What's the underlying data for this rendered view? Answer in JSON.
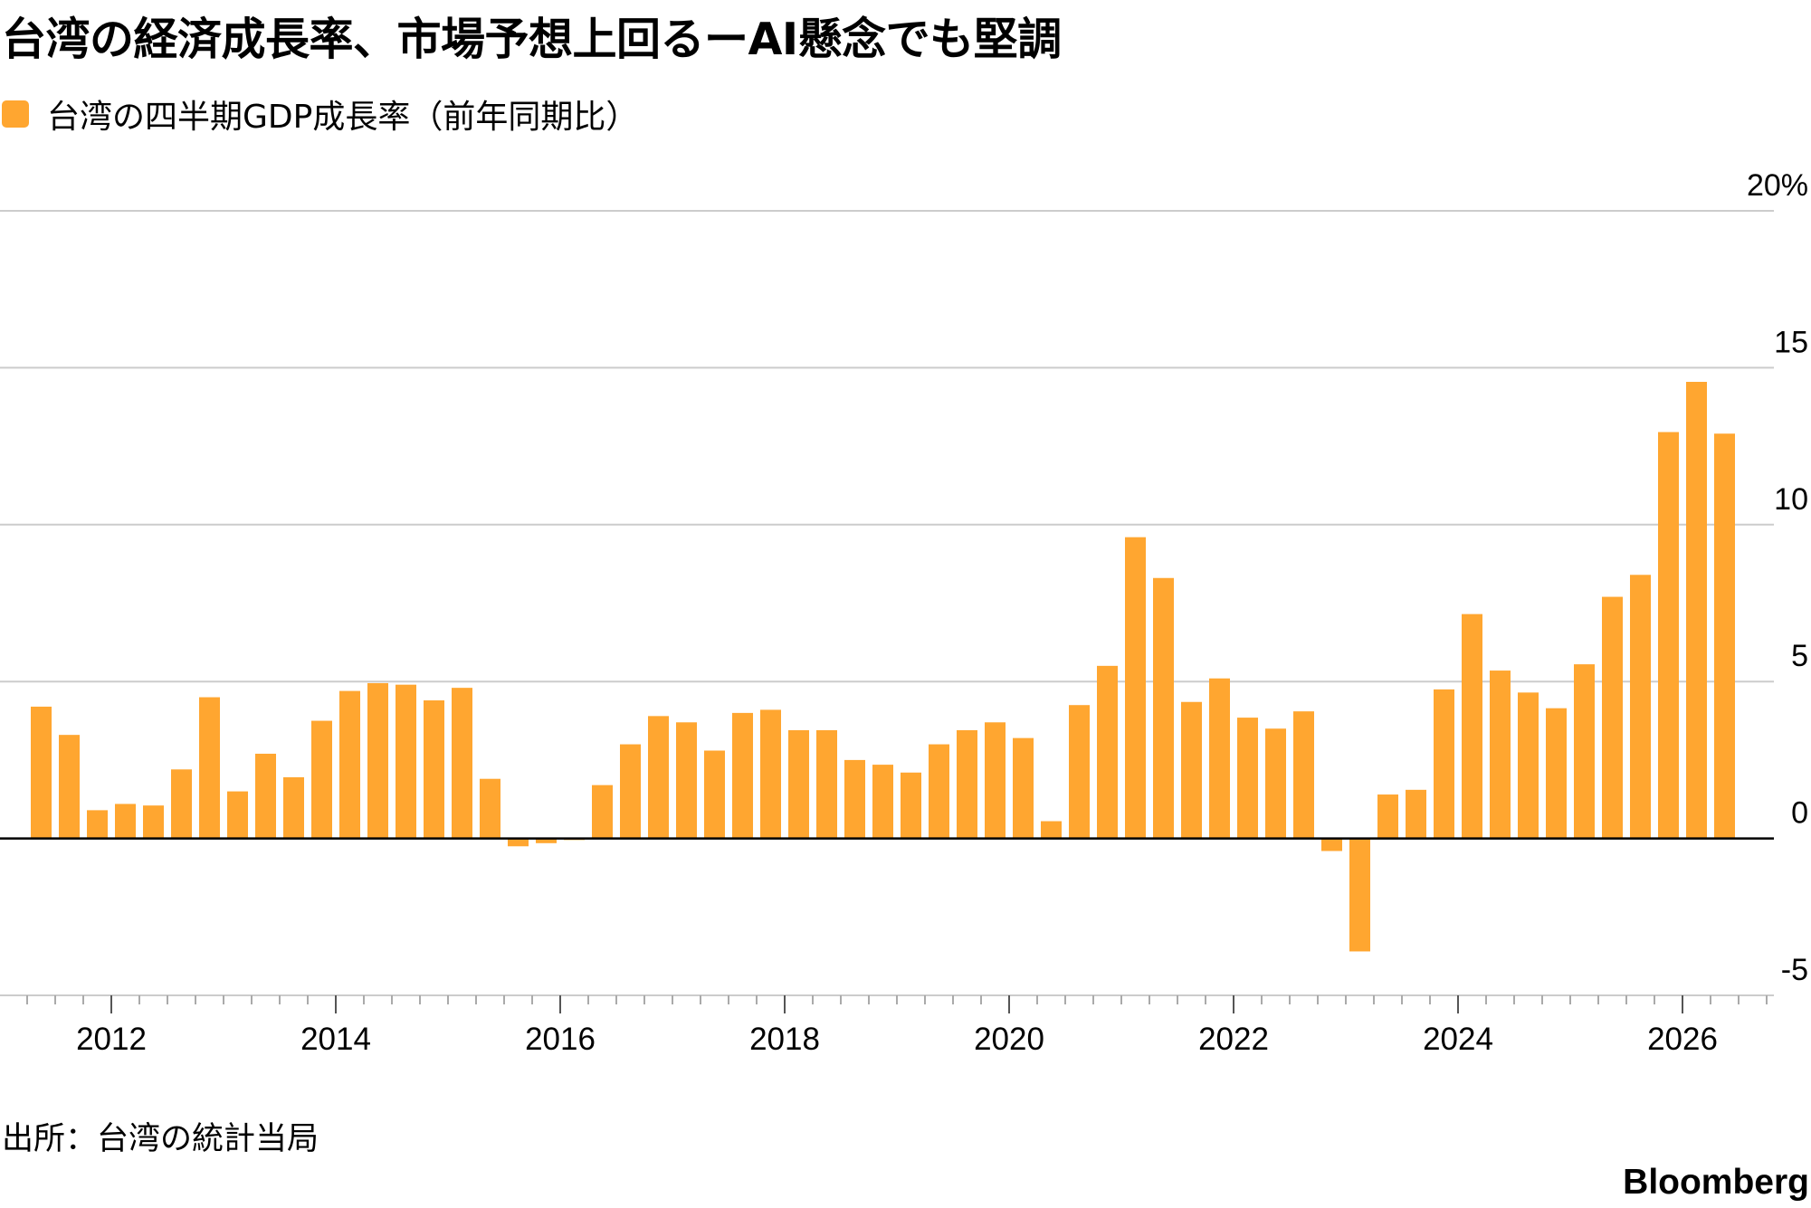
{
  "title": "台湾の経済成長率、市場予想上回るーAI懸念でも堅調",
  "legend": {
    "label": "台湾の四半期GDP成長率（前年同期比）",
    "color": "#ffa630"
  },
  "source": "出所：台湾の統計当局",
  "brand": "Bloomberg",
  "colors": {
    "bar": "#ffa630",
    "grid": "#cccccc",
    "zero_line": "#000000",
    "text": "#000000"
  },
  "chart_data": {
    "type": "bar",
    "title": "台湾の経済成長率、市場予想上回るーAI懸念でも堅調",
    "series": [
      {
        "name": "台湾の四半期GDP成長率（前年同期比）",
        "x_start": "2011 Q2",
        "frequency": "quarterly",
        "values": [
          4.2,
          3.3,
          0.9,
          1.1,
          1.05,
          2.2,
          4.5,
          1.5,
          2.7,
          1.95,
          3.75,
          4.7,
          4.95,
          4.9,
          4.4,
          4.8,
          1.9,
          -0.25,
          -0.15,
          -0.05,
          1.7,
          3.0,
          3.9,
          3.7,
          2.8,
          4.0,
          4.1,
          3.45,
          3.45,
          2.5,
          2.35,
          2.1,
          3.0,
          3.45,
          3.7,
          3.2,
          0.55,
          4.25,
          5.5,
          9.6,
          8.3,
          4.35,
          5.1,
          3.85,
          3.5,
          4.05,
          -0.4,
          -3.6,
          1.4,
          1.55,
          4.75,
          7.15,
          5.35,
          4.65,
          4.15,
          5.55,
          7.7,
          8.4,
          12.95,
          14.55,
          12.9
        ]
      }
    ],
    "x_tick_labels": [
      "2012",
      "2014",
      "2016",
      "2018",
      "2020",
      "2022",
      "2024",
      "2026"
    ],
    "y_tick_labels": [
      "20%",
      "15",
      "10",
      "5",
      "0",
      "-5"
    ],
    "ylim": [
      -5,
      20
    ],
    "y_ticks": [
      20,
      15,
      10,
      5,
      0,
      -5
    ],
    "xlabel": "",
    "ylabel": "",
    "grid": true,
    "legend_position": "top-left",
    "y_axis_side": "right"
  }
}
